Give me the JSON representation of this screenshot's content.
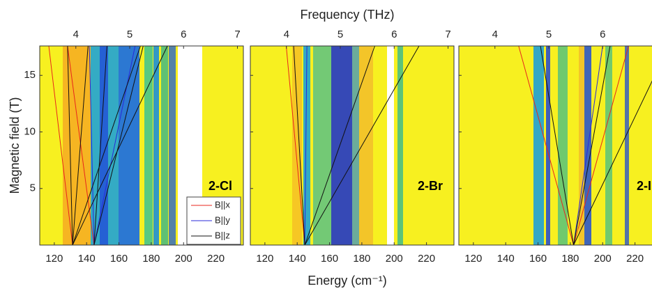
{
  "chart_data": {
    "type": "line",
    "x2label": "Frequency (THz)",
    "xlabel": "Energy (cm⁻¹)",
    "ylabel": "Magnetic field (T)",
    "xlim": [
      111,
      237
    ],
    "xticks": [
      120,
      140,
      160,
      180,
      200,
      220
    ],
    "x2lim": [
      3.33,
      7.11
    ],
    "x2ticks": [
      4,
      5,
      6,
      7
    ],
    "ylim": [
      0,
      17.6
    ],
    "yticks": [
      5,
      10,
      15
    ],
    "panels": [
      "2-Cl",
      "2-Br",
      "2-I"
    ],
    "series": [
      {
        "name": "B||x",
        "color": "#e8261c",
        "panels": [
          [
            {
              "x": [
                131.3,
                116.6
              ],
              "y": [
                0,
                17.6
              ]
            },
            {
              "x": [
                144.6,
                128.2
              ],
              "y": [
                0,
                17.6
              ]
            }
          ],
          [
            {
              "x": [
                144.7,
                133.2
              ],
              "y": [
                0,
                17.6
              ]
            }
          ],
          [
            {
              "x": [
                182,
                148
              ],
              "y": [
                0,
                17.6
              ]
            },
            {
              "x": [
                182,
                216
              ],
              "y": [
                0,
                17.6
              ]
            }
          ]
        ]
      },
      {
        "name": "B||y",
        "color": "#2a2ad8",
        "panels": [
          [
            {
              "x": [
                144.6,
                141.7
              ],
              "y": [
                0,
                17.6
              ]
            },
            {
              "x": [
                144.6,
                170
              ],
              "y": [
                0,
                17.6
              ]
            }
          ],
          [
            {
              "x": [
                144.7,
                146
              ],
              "y": [
                0,
                17.6
              ]
            }
          ],
          [
            {
              "x": [
                182,
                200
              ],
              "y": [
                0,
                17.6
              ]
            }
          ]
        ]
      },
      {
        "name": "B||z",
        "color": "#111111",
        "panels": [
          [
            {
              "x": [
                131.3,
                128.2
              ],
              "y": [
                0,
                17.6
              ]
            },
            {
              "x": [
                131.3,
                140.9
              ],
              "y": [
                0,
                17.6
              ]
            },
            {
              "x": [
                131.3,
                173.3
              ],
              "y": [
                0,
                17.6
              ]
            },
            {
              "x": [
                131.3,
                190
              ],
              "y": [
                0,
                17.6
              ]
            },
            {
              "x": [
                144.6,
                152.6
              ],
              "y": [
                0,
                17.6
              ]
            },
            {
              "x": [
                144.6,
                175
              ],
              "y": [
                0,
                17.6
              ]
            }
          ],
          [
            {
              "x": [
                144.7,
                137.8
              ],
              "y": [
                0,
                17.6
              ]
            },
            {
              "x": [
                144.7,
                188
              ],
              "y": [
                0,
                17.6
              ]
            },
            {
              "x": [
                144.7,
                215.4
              ],
              "y": [
                0,
                17.6
              ]
            }
          ],
          [
            {
              "x": [
                182,
                161.5
              ],
              "y": [
                0,
                17.6
              ]
            },
            {
              "x": [
                182,
                204.6
              ],
              "y": [
                0,
                17.6
              ]
            },
            {
              "x": [
                182,
                241
              ],
              "y": [
                0,
                17.6
              ]
            }
          ]
        ]
      }
    ]
  }
}
